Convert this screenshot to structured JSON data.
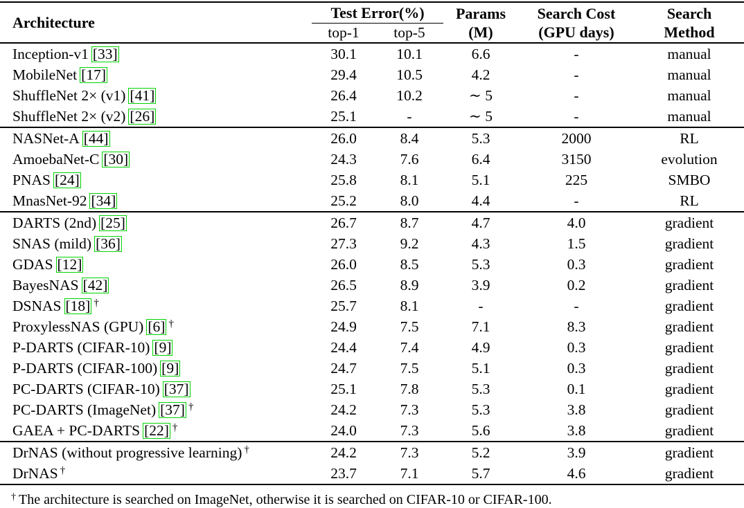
{
  "header": {
    "architecture": "Architecture",
    "test_error": "Test Error(%)",
    "top1": "top-1",
    "top5": "top-5",
    "params": [
      "Params",
      "(M)"
    ],
    "search_cost": [
      "Search Cost",
      "(GPU days)"
    ],
    "search_method": [
      "Search",
      "Method"
    ]
  },
  "colors": {
    "citation_box_border": "#00d400",
    "rule": "#000000"
  },
  "groups": [
    {
      "rows": [
        {
          "arch": "Inception-v1",
          "cite": "[33]",
          "dagger": false,
          "top1": "30.1",
          "top5": "10.1",
          "params": "6.6",
          "cost": "-",
          "method": "manual"
        },
        {
          "arch": "MobileNet",
          "cite": "[17]",
          "dagger": false,
          "top1": "29.4",
          "top5": "10.5",
          "params": "4.2",
          "cost": "-",
          "method": "manual"
        },
        {
          "arch": "ShuffleNet 2× (v1)",
          "cite": "[41]",
          "dagger": false,
          "top1": "26.4",
          "top5": "10.2",
          "params": "∼ 5",
          "cost": "-",
          "method": "manual"
        },
        {
          "arch": "ShuffleNet 2× (v2)",
          "cite": "[26]",
          "dagger": false,
          "top1": "25.1",
          "top5": "-",
          "params": "∼ 5",
          "cost": "-",
          "method": "manual"
        }
      ]
    },
    {
      "rows": [
        {
          "arch": "NASNet-A",
          "cite": "[44]",
          "dagger": false,
          "top1": "26.0",
          "top5": "8.4",
          "params": "5.3",
          "cost": "2000",
          "method": "RL"
        },
        {
          "arch": "AmoebaNet-C",
          "cite": "[30]",
          "dagger": false,
          "top1": "24.3",
          "top5": "7.6",
          "params": "6.4",
          "cost": "3150",
          "method": "evolution"
        },
        {
          "arch": "PNAS",
          "cite": "[24]",
          "dagger": false,
          "top1": "25.8",
          "top5": "8.1",
          "params": "5.1",
          "cost": "225",
          "method": "SMBO"
        },
        {
          "arch": "MnasNet-92",
          "cite": "[34]",
          "dagger": false,
          "top1": "25.2",
          "top5": "8.0",
          "params": "4.4",
          "cost": "-",
          "method": "RL"
        }
      ]
    },
    {
      "rows": [
        {
          "arch": "DARTS (2nd)",
          "cite": "[25]",
          "dagger": false,
          "top1": "26.7",
          "top5": "8.7",
          "params": "4.7",
          "cost": "4.0",
          "method": "gradient"
        },
        {
          "arch": "SNAS (mild)",
          "cite": "[36]",
          "dagger": false,
          "top1": "27.3",
          "top5": "9.2",
          "params": "4.3",
          "cost": "1.5",
          "method": "gradient"
        },
        {
          "arch": "GDAS",
          "cite": "[12]",
          "dagger": false,
          "top1": "26.0",
          "top5": "8.5",
          "params": "5.3",
          "cost": "0.3",
          "method": "gradient"
        },
        {
          "arch": "BayesNAS",
          "cite": "[42]",
          "dagger": false,
          "top1": "26.5",
          "top5": "8.9",
          "params": "3.9",
          "cost": "0.2",
          "method": "gradient"
        },
        {
          "arch": "DSNAS",
          "cite": "[18]",
          "dagger": true,
          "top1": "25.7",
          "top5": "8.1",
          "params": "-",
          "cost": "-",
          "method": "gradient"
        },
        {
          "arch": "ProxylessNAS (GPU)",
          "cite": "[6]",
          "dagger": true,
          "top1": "24.9",
          "top5": "7.5",
          "params": "7.1",
          "cost": "8.3",
          "method": "gradient"
        },
        {
          "arch": "P-DARTS (CIFAR-10)",
          "cite": "[9]",
          "dagger": false,
          "top1": "24.4",
          "top5": "7.4",
          "params": "4.9",
          "cost": "0.3",
          "method": "gradient"
        },
        {
          "arch": "P-DARTS (CIFAR-100)",
          "cite": "[9]",
          "dagger": false,
          "top1": "24.7",
          "top5": "7.5",
          "params": "5.1",
          "cost": "0.3",
          "method": "gradient"
        },
        {
          "arch": "PC-DARTS (CIFAR-10)",
          "cite": "[37]",
          "dagger": false,
          "top1": "25.1",
          "top5": "7.8",
          "params": "5.3",
          "cost": "0.1",
          "method": "gradient"
        },
        {
          "arch": "PC-DARTS (ImageNet)",
          "cite": "[37]",
          "dagger": true,
          "top1": "24.2",
          "top5": "7.3",
          "params": "5.3",
          "cost": "3.8",
          "method": "gradient"
        },
        {
          "arch": "GAEA + PC-DARTS",
          "cite": "[22]",
          "dagger": true,
          "top1": "24.0",
          "top5": "7.3",
          "params": "5.6",
          "cost": "3.8",
          "method": "gradient"
        }
      ]
    },
    {
      "rows": [
        {
          "arch": "DrNAS (without progressive learning)",
          "cite": "",
          "dagger": true,
          "top1": "24.2",
          "top5": "7.3",
          "params": "5.2",
          "cost": "3.9",
          "method": "gradient"
        },
        {
          "arch": "DrNAS",
          "cite": "",
          "dagger": true,
          "top1": "23.7",
          "top5": "7.1",
          "params": "5.7",
          "cost": "4.6",
          "method": "gradient"
        }
      ]
    }
  ],
  "footnote": {
    "dagger": "†",
    "text": "The architecture is searched on ImageNet, otherwise it is searched on CIFAR-10 or CIFAR-100."
  }
}
